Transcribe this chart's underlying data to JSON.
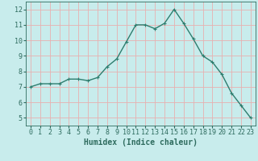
{
  "x": [
    0,
    1,
    2,
    3,
    4,
    5,
    6,
    7,
    8,
    9,
    10,
    11,
    12,
    13,
    14,
    15,
    16,
    17,
    18,
    19,
    20,
    21,
    22,
    23
  ],
  "y": [
    7.0,
    7.2,
    7.2,
    7.2,
    7.5,
    7.5,
    7.4,
    7.6,
    8.3,
    8.8,
    9.9,
    11.0,
    11.0,
    10.75,
    11.1,
    12.0,
    11.1,
    10.1,
    9.0,
    8.6,
    7.8,
    6.6,
    5.8,
    5.0
  ],
  "line_color": "#2e7d6e",
  "marker": "+",
  "marker_size": 3,
  "bg_color": "#c8ecec",
  "grid_color": "#e8b0b0",
  "xlabel": "Humidex (Indice chaleur)",
  "xlim": [
    -0.5,
    23.5
  ],
  "ylim": [
    4.5,
    12.5
  ],
  "yticks": [
    5,
    6,
    7,
    8,
    9,
    10,
    11,
    12
  ],
  "xticks": [
    0,
    1,
    2,
    3,
    4,
    5,
    6,
    7,
    8,
    9,
    10,
    11,
    12,
    13,
    14,
    15,
    16,
    17,
    18,
    19,
    20,
    21,
    22,
    23
  ],
  "tick_color": "#2e6b5e",
  "xlabel_fontsize": 7,
  "tick_fontsize": 6,
  "line_width": 1.0
}
